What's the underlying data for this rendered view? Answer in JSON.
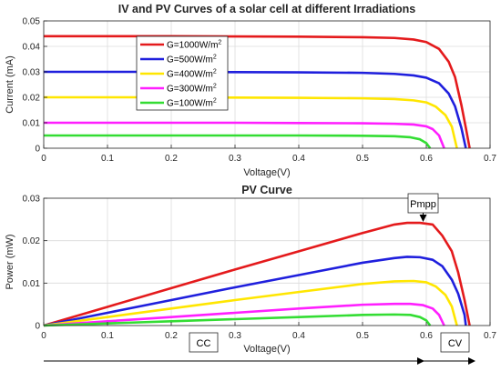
{
  "chart_data": [
    {
      "type": "line",
      "title": "IV and PV Curves of a solar cell at different Irradiations",
      "xlabel": "Voltage(V)",
      "ylabel": "Current (mA)",
      "xlim": [
        0,
        0.7
      ],
      "ylim": [
        0,
        0.05
      ],
      "xticks": [
        "0",
        "0.1",
        "0.2",
        "0.3",
        "0.4",
        "0.5",
        "0.6",
        "0.7"
      ],
      "yticks": [
        "0",
        "0.01",
        "0.02",
        "0.03",
        "0.04",
        "0.05"
      ],
      "grid": true,
      "legend_position": "top-center",
      "series": [
        {
          "name": "G=1000W/m",
          "sup": "2",
          "color": "#e41a1c",
          "x": [
            0,
            0.1,
            0.2,
            0.3,
            0.4,
            0.5,
            0.55,
            0.58,
            0.6,
            0.62,
            0.635,
            0.645,
            0.655,
            0.662,
            0.668
          ],
          "y": [
            0.044,
            0.044,
            0.044,
            0.0439,
            0.0438,
            0.0436,
            0.0433,
            0.0427,
            0.0417,
            0.039,
            0.034,
            0.028,
            0.017,
            0.008,
            0
          ]
        },
        {
          "name": "G=500W/m",
          "sup": "2",
          "color": "#1f1fdd",
          "x": [
            0,
            0.1,
            0.2,
            0.3,
            0.4,
            0.5,
            0.55,
            0.58,
            0.6,
            0.62,
            0.635,
            0.645,
            0.655,
            0.662
          ],
          "y": [
            0.03,
            0.03,
            0.03,
            0.0299,
            0.0298,
            0.0296,
            0.0292,
            0.0286,
            0.0277,
            0.0255,
            0.0215,
            0.0165,
            0.008,
            0
          ]
        },
        {
          "name": "G=400W/m",
          "sup": "2",
          "color": "#ffe600",
          "x": [
            0,
            0.1,
            0.2,
            0.3,
            0.4,
            0.5,
            0.55,
            0.58,
            0.6,
            0.615,
            0.63,
            0.64,
            0.648
          ],
          "y": [
            0.02,
            0.02,
            0.02,
            0.0199,
            0.0198,
            0.0196,
            0.0193,
            0.0188,
            0.018,
            0.0163,
            0.013,
            0.0085,
            0
          ]
        },
        {
          "name": "G=300W/m",
          "sup": "2",
          "color": "#ff1fff",
          "x": [
            0,
            0.1,
            0.2,
            0.3,
            0.4,
            0.5,
            0.55,
            0.58,
            0.6,
            0.61,
            0.62,
            0.628
          ],
          "y": [
            0.01,
            0.01,
            0.01,
            0.01,
            0.0099,
            0.0098,
            0.0096,
            0.0093,
            0.0086,
            0.0075,
            0.005,
            0
          ]
        },
        {
          "name": "G=100W/m",
          "sup": "2",
          "color": "#33dd33",
          "x": [
            0,
            0.1,
            0.2,
            0.3,
            0.4,
            0.5,
            0.55,
            0.575,
            0.59,
            0.6,
            0.606
          ],
          "y": [
            0.005,
            0.005,
            0.005,
            0.005,
            0.005,
            0.0049,
            0.0047,
            0.0043,
            0.0035,
            0.002,
            0
          ]
        }
      ]
    },
    {
      "type": "line",
      "title": "PV Curve",
      "xlabel": "Voltage(V)",
      "ylabel": "Power (mW)",
      "xlim": [
        0,
        0.7
      ],
      "ylim": [
        0,
        0.03
      ],
      "xticks": [
        "0",
        "0.1",
        "0.2",
        "0.3",
        "0.4",
        "0.5",
        "0.6",
        "0.7"
      ],
      "yticks": [
        "0",
        "0.01",
        "0.02",
        "0.03"
      ],
      "grid": true,
      "series": [
        {
          "color": "#e41a1c",
          "x": [
            0,
            0.1,
            0.2,
            0.3,
            0.4,
            0.5,
            0.55,
            0.57,
            0.59,
            0.61,
            0.625,
            0.64,
            0.65,
            0.66,
            0.668
          ],
          "y": [
            0,
            0.0044,
            0.0088,
            0.0132,
            0.0175,
            0.0218,
            0.0238,
            0.0242,
            0.0242,
            0.0238,
            0.0212,
            0.0175,
            0.0125,
            0.006,
            0
          ]
        },
        {
          "color": "#1f1fdd",
          "x": [
            0,
            0.1,
            0.2,
            0.3,
            0.4,
            0.5,
            0.55,
            0.57,
            0.59,
            0.61,
            0.625,
            0.64,
            0.65,
            0.66,
            0.662
          ],
          "y": [
            0,
            0.003,
            0.006,
            0.009,
            0.0119,
            0.0148,
            0.0159,
            0.0162,
            0.0161,
            0.0155,
            0.014,
            0.0108,
            0.0075,
            0.0025,
            0
          ]
        },
        {
          "color": "#ffe600",
          "x": [
            0,
            0.1,
            0.2,
            0.3,
            0.4,
            0.5,
            0.55,
            0.58,
            0.6,
            0.615,
            0.63,
            0.64,
            0.648
          ],
          "y": [
            0,
            0.002,
            0.004,
            0.006,
            0.0079,
            0.0098,
            0.0104,
            0.0105,
            0.0102,
            0.0092,
            0.0072,
            0.0045,
            0
          ]
        },
        {
          "color": "#ff1fff",
          "x": [
            0,
            0.1,
            0.2,
            0.3,
            0.4,
            0.5,
            0.55,
            0.575,
            0.595,
            0.61,
            0.62,
            0.628
          ],
          "y": [
            0,
            0.001,
            0.002,
            0.003,
            0.004,
            0.0049,
            0.0051,
            0.0051,
            0.0048,
            0.004,
            0.0025,
            0
          ]
        },
        {
          "color": "#33dd33",
          "x": [
            0,
            0.1,
            0.2,
            0.3,
            0.4,
            0.5,
            0.55,
            0.575,
            0.59,
            0.6,
            0.606
          ],
          "y": [
            0,
            0.0005,
            0.001,
            0.0015,
            0.002,
            0.0025,
            0.0026,
            0.0025,
            0.002,
            0.0012,
            0
          ]
        }
      ]
    }
  ],
  "annotations": {
    "pmpp": "Pmpp",
    "cc": "CC",
    "cv": "CV"
  }
}
